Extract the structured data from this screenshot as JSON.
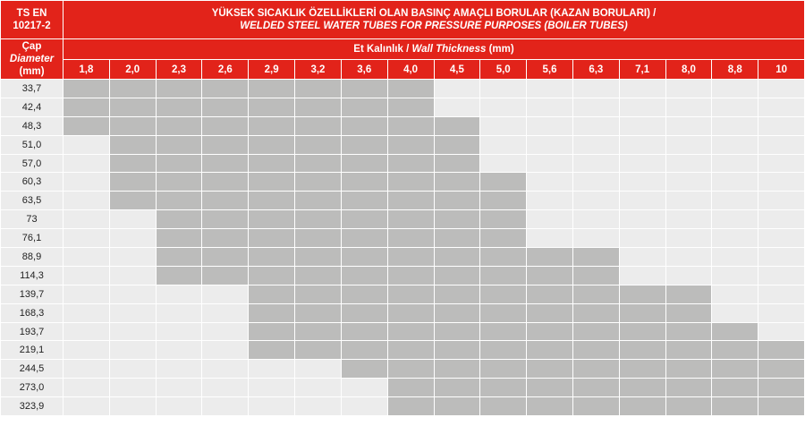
{
  "header": {
    "standard_line1": "TS EN",
    "standard_line2": "10217-2",
    "title_tr": "YÜKSEK SICAKLIK ÖZELLİKLERİ OLAN BASINÇ AMAÇLI BORULAR (KAZAN BORULARI) /",
    "title_en": "WELDED STEEL WATER TUBES FOR PRESSURE PURPOSES (BOILER TUBES)",
    "diameter_tr": "Çap",
    "diameter_en": "Diameter",
    "diameter_unit": "(mm)",
    "thickness_tr": "Et Kalınlık /",
    "thickness_en": "Wall Thickness",
    "thickness_unit": "(mm)"
  },
  "colors": {
    "header": "#e2231a",
    "available": "#bcbcbb",
    "empty": "#ececec"
  },
  "thicknesses": [
    "1,8",
    "2,0",
    "2,3",
    "2,6",
    "2,9",
    "3,2",
    "3,6",
    "4,0",
    "4,5",
    "5,0",
    "5,6",
    "6,3",
    "7,1",
    "8,0",
    "8,8",
    "10"
  ],
  "rows": [
    {
      "diameter": "33,7",
      "from": "1,8",
      "to": "4,0"
    },
    {
      "diameter": "42,4",
      "from": "1,8",
      "to": "4,0"
    },
    {
      "diameter": "48,3",
      "from": "1,8",
      "to": "4,5"
    },
    {
      "diameter": "51,0",
      "from": "2,0",
      "to": "4,5"
    },
    {
      "diameter": "57,0",
      "from": "2,0",
      "to": "4,5"
    },
    {
      "diameter": "60,3",
      "from": "2,0",
      "to": "5,0"
    },
    {
      "diameter": "63,5",
      "from": "2,0",
      "to": "5,0"
    },
    {
      "diameter": "73",
      "from": "2,3",
      "to": "5,0"
    },
    {
      "diameter": "76,1",
      "from": "2,3",
      "to": "5,0"
    },
    {
      "diameter": "88,9",
      "from": "2,3",
      "to": "6,3"
    },
    {
      "diameter": "114,3",
      "from": "2,3",
      "to": "6,3"
    },
    {
      "diameter": "139,7",
      "from": "2,9",
      "to": "8,0"
    },
    {
      "diameter": "168,3",
      "from": "2,9",
      "to": "8,0"
    },
    {
      "diameter": "193,7",
      "from": "2,9",
      "to": "8,8"
    },
    {
      "diameter": "219,1",
      "from": "2,9",
      "to": "10"
    },
    {
      "diameter": "244,5",
      "from": "3,6",
      "to": "10"
    },
    {
      "diameter": "273,0",
      "from": "4,0",
      "to": "10"
    },
    {
      "diameter": "323,9",
      "from": "4,0",
      "to": "10"
    }
  ]
}
